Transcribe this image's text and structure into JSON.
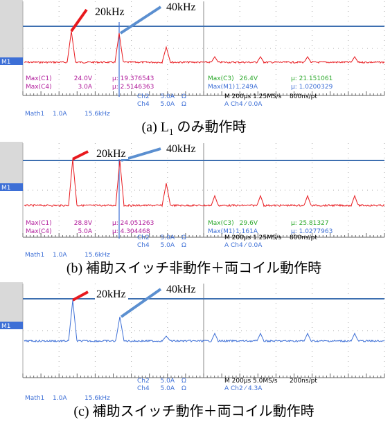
{
  "panels": [
    {
      "annotations": {
        "low": "20kHz",
        "high": "40kHz"
      },
      "marker": "M1",
      "measurements": [
        [
          "Max(C1)",
          "24.0V",
          "µ: 19.376543",
          "Max(C3)",
          "26.4V",
          "µ: 21.151061"
        ],
        [
          "Max(C4)",
          "3.0A",
          "µ: 2.5146363",
          "Max(M1)",
          "1.249A",
          "µ: 1.0200329"
        ]
      ],
      "channels": [
        [
          "Ch2",
          "5.0A",
          "Ω"
        ],
        [
          "Ch4",
          "5.0A",
          "Ω"
        ]
      ],
      "timebase": "M 200µs 1.25MS/s",
      "resolution": "800ns/pt",
      "trigger": "A  Ch4  ⁄  0.0A",
      "math": [
        "Math1",
        "1.0A",
        "15.6kHz"
      ],
      "caption": {
        "prefix": "(a) L",
        "sub": "1",
        "rest": " のみ動作時"
      }
    },
    {
      "annotations": {
        "low": "20kHz",
        "high": "40kHz"
      },
      "marker": "M1",
      "measurements": [
        [
          "Max(C1)",
          "28.8V",
          "µ: 24.051263",
          "Max(C3)",
          "29.6V",
          "µ: 25.81327"
        ],
        [
          "Max(C4)",
          "5.0A",
          "µ: 4.304468",
          "Max(M1)",
          "1.161A",
          "µ: 1.0277963"
        ]
      ],
      "channels": [
        [
          "Ch2",
          "5.0A",
          "Ω"
        ],
        [
          "Ch4",
          "5.0A",
          "Ω"
        ]
      ],
      "timebase": "M 200µs 1.25MS/s",
      "resolution": "800ns/pt",
      "trigger": "A  Ch4  ⁄  0.0A",
      "math": [
        "Math1",
        "1.0A",
        "15.6kHz"
      ],
      "caption": {
        "prefix": "(b)  補助スイッチ非動作＋両コイル動作時"
      }
    },
    {
      "annotations": {
        "low": "20kHz",
        "high": "40kHz"
      },
      "marker": "M1",
      "channels": [
        [
          "Ch2",
          "5.0A",
          "Ω"
        ],
        [
          "Ch4",
          "5.0A",
          "Ω"
        ]
      ],
      "timebase": "M 200µs 5.0MS/s",
      "resolution": "200ns/pt",
      "trigger": "A  Ch2  ⁄  4.3A",
      "math": [
        "Math1",
        "1.0A",
        "15.6kHz"
      ],
      "caption": {
        "prefix": "(c)  補助スイッチ動作＋両コイル動作時"
      }
    }
  ]
}
